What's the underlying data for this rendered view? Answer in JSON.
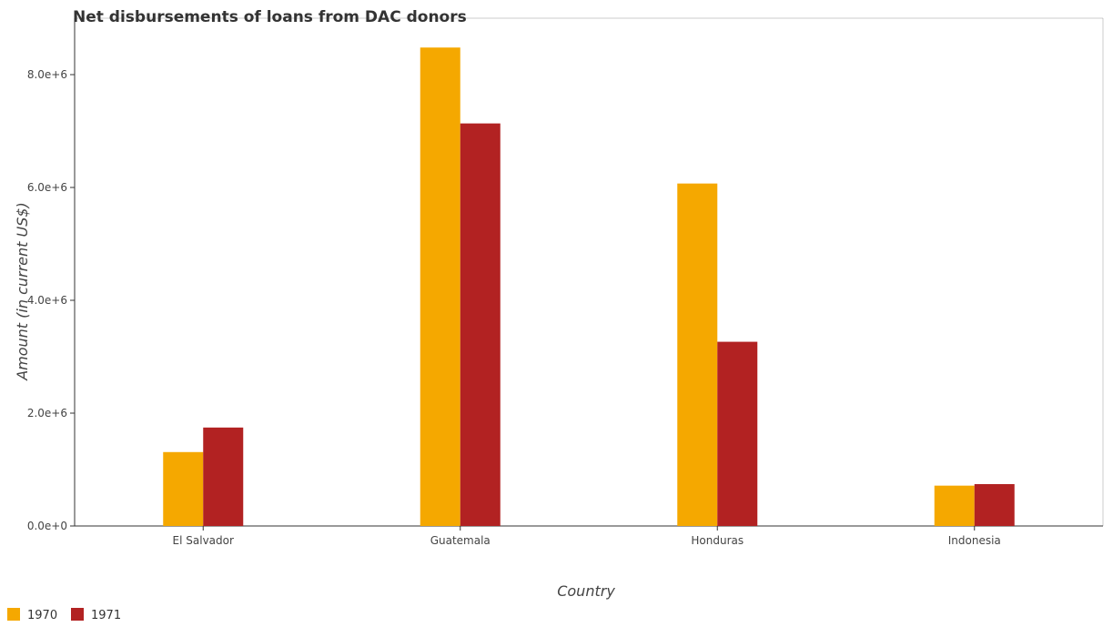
{
  "chart_data": {
    "type": "bar",
    "title": "Net disbursements of loans from DAC donors",
    "xlabel": "Country",
    "ylabel": "Amount (in current US$)",
    "categories": [
      "El Salvador",
      "Guatemala",
      "Honduras",
      "Indonesia"
    ],
    "series": [
      {
        "name": "1970",
        "color": "#f5a800",
        "values": [
          1310000,
          8480000,
          6070000,
          715000
        ]
      },
      {
        "name": "1971",
        "color": "#b22222",
        "values": [
          1745000,
          7135000,
          3265000,
          742000
        ]
      }
    ],
    "ylim": [
      0,
      9000000
    ],
    "yticks": [
      0,
      2000000,
      4000000,
      6000000,
      8000000
    ],
    "ytick_labels": [
      "0.0e+0",
      "2.0e+6",
      "4.0e+6",
      "6.0e+6",
      "8.0e+6"
    ],
    "grid": false,
    "legend_position": "bottom-left"
  }
}
